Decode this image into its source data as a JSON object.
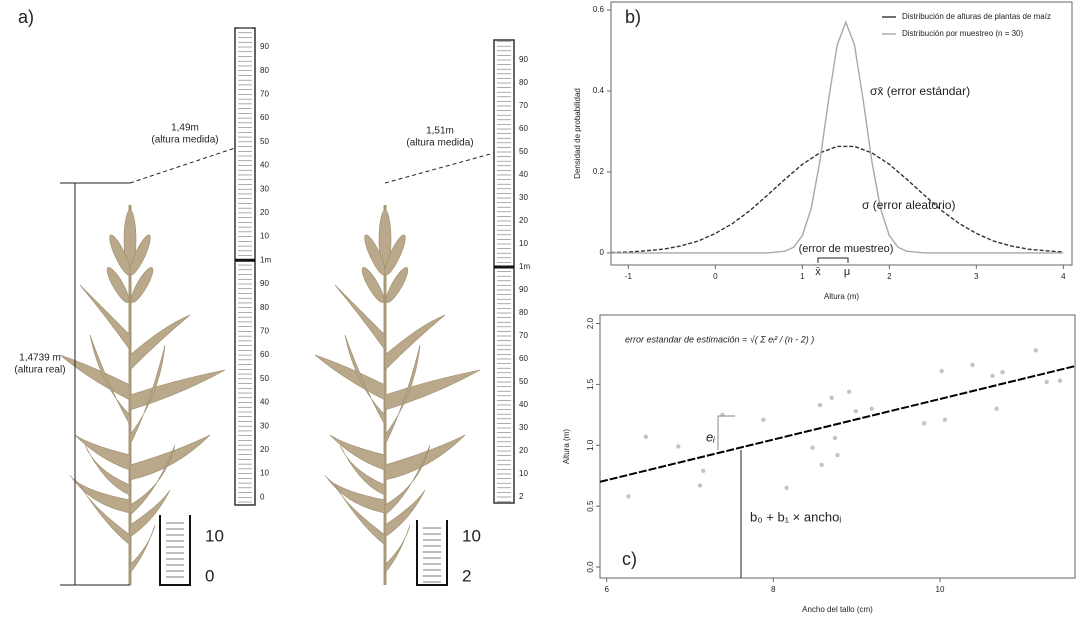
{
  "panel_a": {
    "label": "a)",
    "left_plant": {
      "measured": "1,49m",
      "measured_note": "(altura medida)",
      "real": "1,4739 m",
      "real_note": "(altura real)",
      "ruler": [
        "90",
        "80",
        "70",
        "60",
        "50",
        "40",
        "30",
        "20",
        "10",
        "1m",
        "90",
        "80",
        "70",
        "60",
        "50",
        "40",
        "30",
        "20",
        "10",
        "0"
      ],
      "cup": [
        "10",
        "0"
      ]
    },
    "right_plant": {
      "measured": "1,51m",
      "measured_note": "(altura medida)",
      "ruler": [
        "90",
        "80",
        "70",
        "60",
        "50",
        "40",
        "30",
        "20",
        "10",
        "1m",
        "90",
        "80",
        "70",
        "60",
        "50",
        "40",
        "30",
        "20",
        "10",
        "2"
      ],
      "cup": [
        "10",
        "2"
      ]
    }
  },
  "chart_data": [
    {
      "type": "line",
      "panel_label": "b)",
      "x_label": "Altura (m)",
      "y_label": "Densidad de probabilidad",
      "xlim": [
        -1.2,
        4.1
      ],
      "ylim": [
        -0.03,
        0.62
      ],
      "xticks": [
        -1,
        0,
        1,
        2,
        3,
        4
      ],
      "yticks": [
        0,
        0.2,
        0.4,
        0.6
      ],
      "legend": "top-right",
      "series": [
        {
          "name": "Distribución de alturas de plantas de maíz",
          "color": "#333333",
          "dashed": true,
          "x": [
            -1.2,
            -1.0,
            -0.8,
            -0.6,
            -0.4,
            -0.2,
            0,
            0.2,
            0.4,
            0.6,
            0.8,
            1.0,
            1.2,
            1.4,
            1.6,
            1.8,
            2.0,
            2.2,
            2.4,
            2.6,
            2.8,
            3.0,
            3.2,
            3.4,
            3.6,
            3.8,
            4.0
          ],
          "values": [
            0.001,
            0.002,
            0.005,
            0.009,
            0.017,
            0.029,
            0.048,
            0.073,
            0.105,
            0.143,
            0.182,
            0.219,
            0.247,
            0.263,
            0.263,
            0.247,
            0.219,
            0.182,
            0.143,
            0.105,
            0.073,
            0.048,
            0.029,
            0.017,
            0.009,
            0.005,
            0.002
          ]
        },
        {
          "name": "Distribución por muestreo (n = 30)",
          "color": "#a8a8a8",
          "dashed": false,
          "x": [
            -1.2,
            0.6,
            0.8,
            0.9,
            1.0,
            1.1,
            1.2,
            1.3,
            1.4,
            1.5,
            1.6,
            1.7,
            1.8,
            1.9,
            2.0,
            2.1,
            2.2,
            2.4,
            4.0
          ],
          "values": [
            0,
            0,
            0.004,
            0.014,
            0.043,
            0.109,
            0.225,
            0.377,
            0.514,
            0.57,
            0.514,
            0.377,
            0.225,
            0.109,
            0.043,
            0.014,
            0.004,
            0,
            0
          ]
        }
      ],
      "annotations": [
        "σx̄ (error estándar)",
        "σ (error aleatorio)",
        "(error de muestreo)",
        "x̄",
        "μ"
      ]
    },
    {
      "type": "scatter",
      "panel_label": "c)",
      "x_label": "Ancho del tallo (cm)",
      "y_label": "Altura (m)",
      "xlim": [
        5.92,
        11.62
      ],
      "ylim": [
        -0.09,
        2.07
      ],
      "xticks": [
        6,
        8,
        10
      ],
      "yticks": [
        {
          "value": 0,
          "label": "0.0"
        },
        0.5,
        {
          "value": 1,
          "label": "1.0"
        },
        1.5,
        {
          "value": 2,
          "label": "2.0"
        }
      ],
      "color": "#c4c4c4",
      "x": [
        6.26,
        6.47,
        6.86,
        7.12,
        7.16,
        7.39,
        7.88,
        8.16,
        8.47,
        8.56,
        8.58,
        8.7,
        8.74,
        8.77,
        8.91,
        8.99,
        9.18,
        9.81,
        10.02,
        10.06,
        10.39,
        10.63,
        10.68,
        10.75,
        11.15,
        11.28,
        11.44
      ],
      "values": [
        0.58,
        1.07,
        0.99,
        0.67,
        0.79,
        1.25,
        1.21,
        0.65,
        0.98,
        1.33,
        0.84,
        1.39,
        1.06,
        0.92,
        1.44,
        1.28,
        1.3,
        1.18,
        1.61,
        1.21,
        1.66,
        1.57,
        1.3,
        1.6,
        1.78,
        1.52,
        1.53
      ],
      "fit_line": {
        "x": [
          5.92,
          11.62
        ],
        "values": [
          0.7,
          1.65
        ],
        "color": "#000000"
      },
      "annotations": [
        "error estandar de estimación = √( Σ eᵢ² / (n - 2) )",
        "eᵢ",
        "b₀ + b₁ × anchoᵢ"
      ]
    }
  ]
}
